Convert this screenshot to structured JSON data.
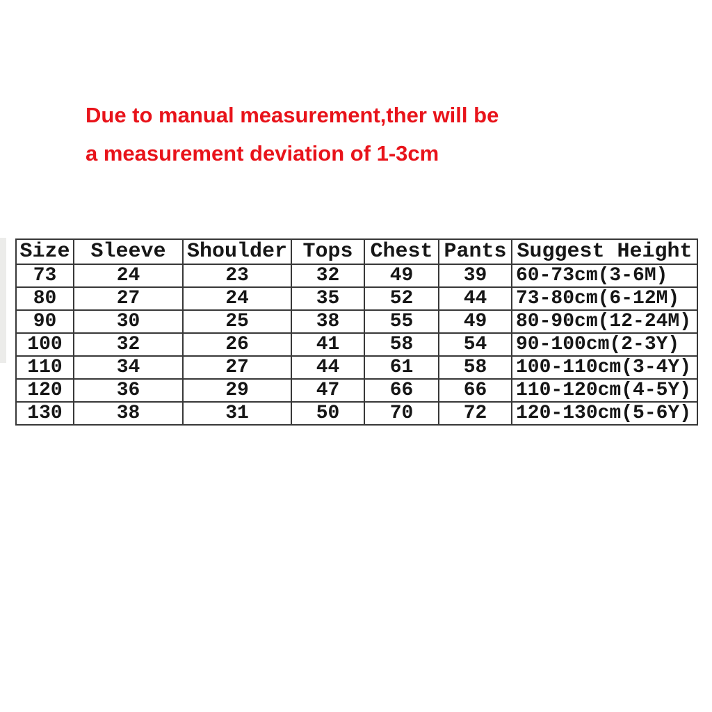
{
  "notice": {
    "line1": "Due to manual measurement,ther will be",
    "line2": "a measurement deviation of 1-3cm",
    "color": "#e8131a"
  },
  "chart_data": {
    "type": "table",
    "title": "",
    "columns": [
      "Size",
      "Sleeve",
      "Shoulder",
      "Tops",
      "Chest",
      "Pants",
      "Suggest Height"
    ],
    "rows": [
      [
        "73",
        "24",
        "23",
        "32",
        "49",
        "39",
        "60-73cm(3-6M)"
      ],
      [
        "80",
        "27",
        "24",
        "35",
        "52",
        "44",
        "73-80cm(6-12M)"
      ],
      [
        "90",
        "30",
        "25",
        "38",
        "55",
        "49",
        "80-90cm(12-24M)"
      ],
      [
        "100",
        "32",
        "26",
        "41",
        "58",
        "54",
        "90-100cm(2-3Y)"
      ],
      [
        "110",
        "34",
        "27",
        "44",
        "61",
        "58",
        "100-110cm(3-4Y)"
      ],
      [
        "120",
        "36",
        "29",
        "47",
        "66",
        "66",
        "110-120cm(4-5Y)"
      ],
      [
        "130",
        "38",
        "31",
        "50",
        "70",
        "72",
        "120-130cm(5-6Y)"
      ]
    ],
    "highlighted_column": "Tops",
    "highlight_color": "#4a9440",
    "units": "cm"
  }
}
